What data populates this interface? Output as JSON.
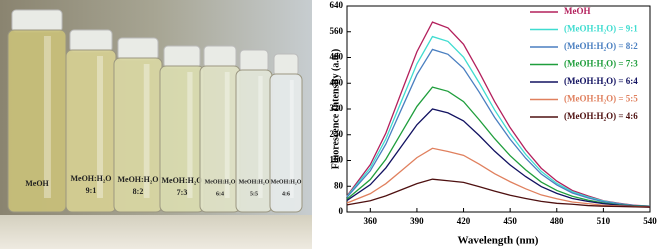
{
  "photo": {
    "labels": [
      {
        "name": "MeOH"
      },
      {
        "name": "MeOH:H₂O",
        "ratio": "9:1"
      },
      {
        "name": "MeOH:H₂O",
        "ratio": "8:2"
      },
      {
        "name": "MeOH:H₂O",
        "ratio": "7:3"
      },
      {
        "name": "MeOH:H₂O",
        "ratio": "6:4"
      },
      {
        "name": "MeOH:H₂O",
        "ratio": "5:5"
      },
      {
        "name": "MeOH:H₂O",
        "ratio": "4:6"
      }
    ]
  },
  "chart_data": {
    "type": "line",
    "x_label": "Wavelength (nm)",
    "y_label": "Fluorescence Intensity (a.u.)",
    "x": [
      345,
      360,
      370,
      380,
      390,
      400,
      410,
      420,
      430,
      440,
      450,
      460,
      470,
      480,
      490,
      500,
      510,
      520,
      530,
      540
    ],
    "xlim": [
      345,
      540
    ],
    "xticks": [
      360,
      390,
      420,
      450,
      480,
      510,
      540
    ],
    "ylim": [
      0,
      640
    ],
    "yticks": [
      0,
      80,
      160,
      240,
      320,
      400,
      480,
      560,
      640
    ],
    "legend": "upper right",
    "series": [
      {
        "name": "MeOH",
        "color": "#b3205c",
        "values": [
          50,
          147,
          245,
          372,
          498,
          590,
          572,
          521,
          435,
          343,
          262,
          193,
          136,
          96,
          67,
          50,
          35,
          27,
          21,
          18
        ]
      },
      {
        "name": "(MeOH:H₂O) = 9:1",
        "color": "#3fdcd0",
        "values": [
          48,
          137,
          227,
          344,
          460,
          545,
          530,
          481,
          402,
          317,
          243,
          179,
          126,
          89,
          63,
          47,
          34,
          26,
          20,
          18
        ]
      },
      {
        "name": "(MeOH:H₂O) = 8:2",
        "color": "#4a7fc0",
        "values": [
          46,
          128,
          211,
          319,
          427,
          505,
          490,
          446,
          373,
          294,
          226,
          167,
          118,
          84,
          59,
          44,
          32,
          25,
          20,
          17
        ]
      },
      {
        "name": "(MeOH:H₂O) = 7:3",
        "color": "#1f9e3c",
        "values": [
          40,
          101,
          164,
          246,
          328,
          388,
          375,
          343,
          287,
          228,
          175,
          131,
          93,
          67,
          49,
          37,
          28,
          22,
          19,
          17
        ]
      },
      {
        "name": "(MeOH:H₂O) = 6:4",
        "color": "#121261",
        "values": [
          36,
          85,
          137,
          204,
          271,
          320,
          308,
          283,
          238,
          189,
          146,
          110,
          79,
          58,
          42,
          33,
          26,
          21,
          18,
          17
        ]
      },
      {
        "name": "(MeOH:H₂O) = 5:5",
        "color": "#e0805e",
        "values": [
          28,
          57,
          88,
          128,
          169,
          198,
          188,
          176,
          149,
          119,
          94,
          72,
          53,
          41,
          31,
          26,
          21,
          19,
          17,
          16
        ]
      },
      {
        "name": "(MeOH:H₂O) = 4:6",
        "color": "#4e1010",
        "values": [
          22,
          35,
          50,
          69,
          88,
          102,
          97,
          92,
          79,
          65,
          52,
          42,
          33,
          27,
          24,
          20,
          18,
          17,
          16,
          15
        ]
      }
    ]
  }
}
